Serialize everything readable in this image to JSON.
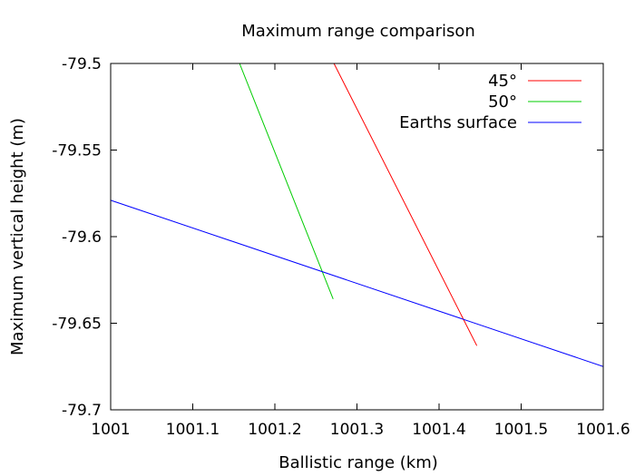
{
  "chart_data": {
    "type": "line",
    "title": "Maximum range comparison",
    "xlabel": "Ballistic range (km)",
    "ylabel": "Maximum vertical height (m)",
    "xlim": [
      1001,
      1001.6
    ],
    "ylim": [
      -79.7,
      -79.5
    ],
    "x_ticks": [
      1001,
      1001.1,
      1001.2,
      1001.3,
      1001.4,
      1001.5,
      1001.6
    ],
    "x_tick_labels": [
      "1001",
      "1001.1",
      "1001.2",
      "1001.3",
      "1001.4",
      "1001.5",
      "1001.6"
    ],
    "y_ticks": [
      -79.5,
      -79.55,
      -79.6,
      -79.65,
      -79.7
    ],
    "y_tick_labels": [
      "-79.5",
      "-79.55",
      "-79.6",
      "-79.65",
      "-79.7"
    ],
    "grid": false,
    "legend_position": "top-right",
    "series": [
      {
        "name": "45°",
        "color": "#ff0000",
        "points": [
          [
            1001.272,
            -79.5
          ],
          [
            1001.446,
            -79.663
          ]
        ]
      },
      {
        "name": "50°",
        "color": "#00cc00",
        "points": [
          [
            1001.157,
            -79.5
          ],
          [
            1001.271,
            -79.636
          ]
        ]
      },
      {
        "name": "Earths surface",
        "color": "#0000ff",
        "points": [
          [
            1001.0,
            -79.579
          ],
          [
            1001.6,
            -79.675
          ]
        ]
      }
    ]
  }
}
